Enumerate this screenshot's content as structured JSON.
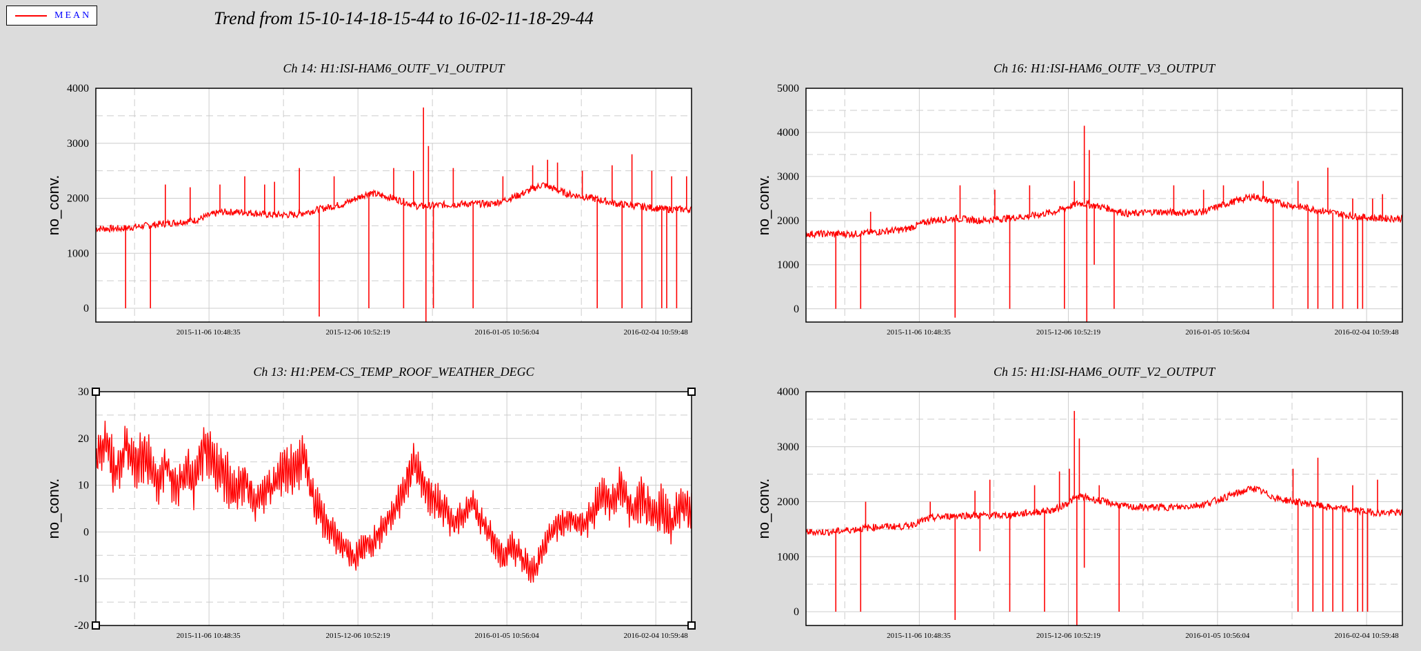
{
  "legend": {
    "label": "MEAN",
    "color": "#ff0000",
    "text_color": "#0000ff"
  },
  "title": "Trend from 15-10-14-18-15-44 to 16-02-11-18-29-44",
  "chart_data": [
    {
      "type": "line",
      "title": "Ch 14: H1:ISI-HAM6_OUTF_V1_OUTPUT",
      "ylabel": "no_conv.",
      "ylim": [
        -250,
        4000
      ],
      "yticks": [
        0,
        1000,
        2000,
        3000,
        4000
      ],
      "xticks": [
        "2015-11-06 10:48:35",
        "2015-12-06 10:52:19",
        "2016-01-05 10:56:04",
        "2016-02-04 10:59:48"
      ],
      "grid": true,
      "selected": false,
      "series": [
        {
          "name": "MEAN",
          "color": "#ff0000",
          "x": [
            0,
            5,
            10,
            15,
            20,
            25,
            30,
            35,
            40,
            45,
            50,
            55,
            60,
            65,
            70,
            75,
            80,
            85,
            90,
            95,
            100,
            105,
            110,
            115,
            120
          ],
          "values": [
            1450,
            1450,
            1500,
            1550,
            1600,
            1750,
            1750,
            1700,
            1700,
            1800,
            1900,
            2100,
            2000,
            1850,
            1880,
            1900,
            1900,
            2050,
            2250,
            2080,
            2000,
            1900,
            1850,
            1800,
            1800
          ],
          "spikes": [
            {
              "x": 6,
              "y": 0
            },
            {
              "x": 11,
              "y": 0
            },
            {
              "x": 14,
              "y": 2250
            },
            {
              "x": 19,
              "y": 2200
            },
            {
              "x": 25,
              "y": 2250
            },
            {
              "x": 30,
              "y": 2400
            },
            {
              "x": 34,
              "y": 2250
            },
            {
              "x": 36,
              "y": 2300
            },
            {
              "x": 41,
              "y": 2550
            },
            {
              "x": 45,
              "y": -150
            },
            {
              "x": 48,
              "y": 2400
            },
            {
              "x": 55,
              "y": 0
            },
            {
              "x": 60,
              "y": 2550
            },
            {
              "x": 62,
              "y": 0
            },
            {
              "x": 64,
              "y": 2500
            },
            {
              "x": 66,
              "y": 3650
            },
            {
              "x": 66.5,
              "y": -250
            },
            {
              "x": 67,
              "y": 2950
            },
            {
              "x": 68,
              "y": 0
            },
            {
              "x": 72,
              "y": 2550
            },
            {
              "x": 76,
              "y": 0
            },
            {
              "x": 82,
              "y": 2400
            },
            {
              "x": 88,
              "y": 2600
            },
            {
              "x": 91,
              "y": 2700
            },
            {
              "x": 93,
              "y": 2650
            },
            {
              "x": 98,
              "y": 2500
            },
            {
              "x": 101,
              "y": 0
            },
            {
              "x": 104,
              "y": 2600
            },
            {
              "x": 106,
              "y": 0
            },
            {
              "x": 108,
              "y": 2800
            },
            {
              "x": 110,
              "y": 0
            },
            {
              "x": 112,
              "y": 2500
            },
            {
              "x": 114,
              "y": 0
            },
            {
              "x": 115,
              "y": 0
            },
            {
              "x": 116,
              "y": 2400
            },
            {
              "x": 117,
              "y": 0
            },
            {
              "x": 119,
              "y": 2400
            }
          ]
        }
      ]
    },
    {
      "type": "line",
      "title": "Ch 16: H1:ISI-HAM6_OUTF_V3_OUTPUT",
      "ylabel": "no_conv.",
      "ylim": [
        -300,
        5000
      ],
      "yticks": [
        0,
        1000,
        2000,
        3000,
        4000,
        5000
      ],
      "xticks": [
        "2015-11-06 10:48:35",
        "2015-12-06 10:52:19",
        "2016-01-05 10:56:04",
        "2016-02-04 10:59:48"
      ],
      "grid": true,
      "selected": false,
      "series": [
        {
          "name": "MEAN",
          "color": "#ff0000",
          "x": [
            0,
            5,
            10,
            15,
            20,
            25,
            30,
            35,
            40,
            45,
            50,
            55,
            60,
            65,
            70,
            75,
            80,
            85,
            90,
            95,
            100,
            105,
            110,
            115,
            120
          ],
          "values": [
            1700,
            1700,
            1700,
            1750,
            1800,
            2000,
            2050,
            2000,
            2050,
            2100,
            2200,
            2400,
            2300,
            2150,
            2200,
            2180,
            2200,
            2400,
            2550,
            2400,
            2300,
            2200,
            2100,
            2050,
            2050
          ],
          "spikes": [
            {
              "x": 6,
              "y": 0
            },
            {
              "x": 11,
              "y": 0
            },
            {
              "x": 13,
              "y": 2200
            },
            {
              "x": 30,
              "y": -200
            },
            {
              "x": 31,
              "y": 2800
            },
            {
              "x": 38,
              "y": 2700
            },
            {
              "x": 41,
              "y": 0
            },
            {
              "x": 45,
              "y": 2800
            },
            {
              "x": 52,
              "y": 0
            },
            {
              "x": 54,
              "y": 2900
            },
            {
              "x": 56,
              "y": 4150
            },
            {
              "x": 56.5,
              "y": -300
            },
            {
              "x": 57,
              "y": 3600
            },
            {
              "x": 58,
              "y": 1000
            },
            {
              "x": 62,
              "y": 0
            },
            {
              "x": 74,
              "y": 2800
            },
            {
              "x": 80,
              "y": 2700
            },
            {
              "x": 84,
              "y": 2800
            },
            {
              "x": 92,
              "y": 2900
            },
            {
              "x": 94,
              "y": 0
            },
            {
              "x": 99,
              "y": 2900
            },
            {
              "x": 101,
              "y": 0
            },
            {
              "x": 103,
              "y": 0
            },
            {
              "x": 105,
              "y": 3200
            },
            {
              "x": 106,
              "y": 0
            },
            {
              "x": 108,
              "y": 0
            },
            {
              "x": 110,
              "y": 2500
            },
            {
              "x": 111,
              "y": 0
            },
            {
              "x": 112,
              "y": 0
            },
            {
              "x": 114,
              "y": 2500
            },
            {
              "x": 116,
              "y": 2600
            }
          ]
        }
      ]
    },
    {
      "type": "line",
      "title": "Ch 13: H1:PEM-CS_TEMP_ROOF_WEATHER_DEGC",
      "ylabel": "no_conv.",
      "ylim": [
        -20,
        30
      ],
      "yticks": [
        -20,
        -10,
        0,
        10,
        20,
        30
      ],
      "xticks": [
        "2015-11-06 10:48:35",
        "2015-12-06 10:52:19",
        "2016-01-05 10:56:04",
        "2016-02-04 10:59:48"
      ],
      "grid": true,
      "selected": true,
      "series": [
        {
          "name": "MEAN",
          "color": "#ff0000",
          "x": [
            0,
            2,
            4,
            6,
            8,
            10,
            12,
            14,
            16,
            18,
            20,
            22,
            24,
            26,
            28,
            30,
            32,
            34,
            36,
            38,
            40,
            42,
            44,
            46,
            48,
            50,
            52,
            54,
            56,
            58,
            60,
            62,
            64,
            66,
            68,
            70,
            72,
            74,
            76,
            78,
            80,
            82,
            84,
            86,
            88,
            90,
            92,
            94,
            96,
            98,
            100,
            102,
            104,
            106,
            108,
            110,
            112,
            114,
            116,
            118,
            120
          ],
          "values": [
            15,
            20,
            12,
            18,
            14,
            17,
            10,
            15,
            9,
            13,
            11,
            19,
            14,
            12,
            8,
            11,
            6,
            9,
            10,
            14,
            13,
            16,
            6,
            3,
            -1,
            -3,
            -6,
            -3,
            -2,
            1,
            4,
            9,
            15,
            10,
            7,
            5,
            2,
            4,
            6,
            2,
            -2,
            -5,
            -3,
            -6,
            -9,
            -4,
            1,
            2,
            3,
            1,
            4,
            8,
            6,
            10,
            4,
            7,
            3,
            5,
            2,
            6,
            4
          ],
          "amp": [
            4,
            5,
            6,
            5,
            6,
            5,
            6,
            5,
            4,
            5,
            6,
            5,
            5,
            6,
            4,
            5,
            4,
            5,
            4,
            5,
            5,
            5,
            4,
            4,
            3,
            3,
            3,
            3,
            3,
            3,
            3,
            4,
            4,
            4,
            4,
            4,
            3,
            3,
            3,
            3,
            3,
            3,
            3,
            3,
            3,
            3,
            3,
            3,
            3,
            3,
            4,
            4,
            5,
            4,
            4,
            5,
            4,
            5,
            4,
            5,
            4
          ],
          "spikes": []
        }
      ]
    },
    {
      "type": "line",
      "title": "Ch 15: H1:ISI-HAM6_OUTF_V2_OUTPUT",
      "ylabel": "no_conv.",
      "ylim": [
        -250,
        4000
      ],
      "yticks": [
        0,
        1000,
        2000,
        3000,
        4000
      ],
      "xticks": [
        "2015-11-06 10:48:35",
        "2015-12-06 10:52:19",
        "2016-01-05 10:56:04",
        "2016-02-04 10:59:48"
      ],
      "grid": true,
      "selected": false,
      "series": [
        {
          "name": "MEAN",
          "color": "#ff0000",
          "x": [
            0,
            5,
            10,
            15,
            20,
            25,
            30,
            35,
            40,
            45,
            50,
            55,
            60,
            65,
            70,
            75,
            80,
            85,
            90,
            95,
            100,
            105,
            110,
            115,
            120
          ],
          "values": [
            1450,
            1450,
            1500,
            1550,
            1550,
            1700,
            1750,
            1750,
            1750,
            1800,
            1850,
            2100,
            2000,
            1900,
            1900,
            1900,
            1950,
            2100,
            2250,
            2050,
            1980,
            1900,
            1850,
            1800,
            1800
          ],
          "spikes": [
            {
              "x": 6,
              "y": 0
            },
            {
              "x": 11,
              "y": 0
            },
            {
              "x": 12,
              "y": 2000
            },
            {
              "x": 25,
              "y": 2000
            },
            {
              "x": 30,
              "y": -150
            },
            {
              "x": 34,
              "y": 2200
            },
            {
              "x": 35,
              "y": 1100
            },
            {
              "x": 37,
              "y": 2400
            },
            {
              "x": 41,
              "y": 0
            },
            {
              "x": 46,
              "y": 2300
            },
            {
              "x": 48,
              "y": 0
            },
            {
              "x": 51,
              "y": 2550
            },
            {
              "x": 53,
              "y": 2600
            },
            {
              "x": 54,
              "y": 3650
            },
            {
              "x": 54.5,
              "y": -250
            },
            {
              "x": 55,
              "y": 3150
            },
            {
              "x": 56,
              "y": 800
            },
            {
              "x": 59,
              "y": 2300
            },
            {
              "x": 63,
              "y": 0
            },
            {
              "x": 90,
              "y": 2200
            },
            {
              "x": 98,
              "y": 2600
            },
            {
              "x": 99,
              "y": 0
            },
            {
              "x": 102,
              "y": 0
            },
            {
              "x": 103,
              "y": 2800
            },
            {
              "x": 104,
              "y": 0
            },
            {
              "x": 106,
              "y": 0
            },
            {
              "x": 108,
              "y": 0
            },
            {
              "x": 110,
              "y": 2300
            },
            {
              "x": 111,
              "y": 0
            },
            {
              "x": 112,
              "y": 0
            },
            {
              "x": 113,
              "y": 0
            },
            {
              "x": 115,
              "y": 2400
            }
          ]
        }
      ]
    }
  ]
}
